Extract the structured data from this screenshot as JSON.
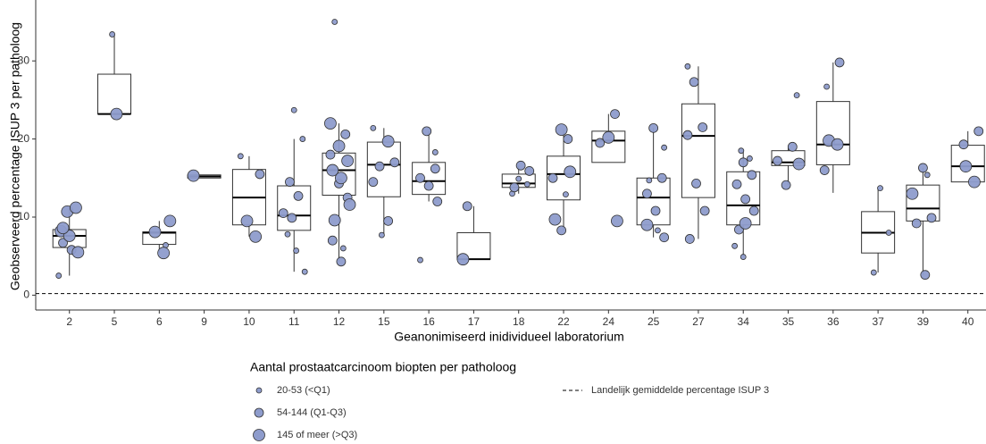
{
  "chart_data": {
    "type": "box",
    "y_label": "Geobserveerd percentage ISUP 3 per patholoog",
    "x_label": "Geanonimiseerd inidividueel laboratorium",
    "categories": [
      "2",
      "5",
      "6",
      "9",
      "10",
      "11",
      "12",
      "15",
      "16",
      "17",
      "18",
      "22",
      "24",
      "25",
      "27",
      "34",
      "35",
      "36",
      "37",
      "39",
      "40"
    ],
    "boxes": {
      "whisker_low": [
        2.5,
        23.2,
        5.4,
        15.0,
        7.5,
        3.0,
        4.3,
        7.7,
        12.0,
        4.6,
        13.0,
        8.3,
        17.0,
        7.4,
        7.2,
        4.9,
        14.1,
        13.1,
        2.9,
        2.6,
        14.5
      ],
      "q1": [
        6.1,
        23.2,
        6.5,
        15.0,
        9.0,
        8.3,
        12.8,
        12.6,
        12.9,
        4.6,
        13.8,
        12.2,
        17.0,
        9.0,
        12.5,
        9.0,
        16.6,
        16.7,
        5.4,
        9.5,
        14.5
      ],
      "median": [
        7.6,
        23.2,
        8.0,
        15.2,
        12.5,
        10.2,
        16.0,
        16.7,
        14.6,
        4.6,
        14.3,
        15.5,
        19.8,
        12.5,
        20.4,
        11.5,
        17.0,
        19.3,
        8.0,
        11.1,
        16.5
      ],
      "q3": [
        8.4,
        28.3,
        8.1,
        15.4,
        16.1,
        14.0,
        18.2,
        19.6,
        17.0,
        8.0,
        15.5,
        17.8,
        21.0,
        15.0,
        24.5,
        15.8,
        18.5,
        24.8,
        10.7,
        14.1,
        19.2
      ],
      "whisker_high": [
        11.2,
        33.4,
        9.5,
        15.4,
        17.8,
        20.0,
        22.0,
        21.4,
        21.0,
        11.4,
        16.6,
        21.2,
        23.2,
        21.4,
        29.3,
        18.5,
        19.0,
        29.8,
        13.7,
        16.3,
        21.0
      ]
    },
    "legend_title": "Aantal prostaatcarcinoom biopten per patholoog",
    "series": [
      {
        "name": "20-53 (<Q1)",
        "color": "#8e9ccc",
        "x": [
          "2",
          "5",
          "6",
          "10",
          "11",
          "11",
          "11",
          "11",
          "11",
          "12",
          "12",
          "15",
          "15",
          "16",
          "16",
          "18",
          "18",
          "18",
          "22",
          "25",
          "25",
          "25",
          "27",
          "34",
          "34",
          "34",
          "34",
          "35",
          "36",
          "37",
          "37",
          "37",
          "39"
        ],
        "values": [
          2.5,
          33.4,
          6.4,
          17.8,
          23.7,
          20.0,
          7.8,
          5.7,
          3.0,
          35.0,
          6.0,
          21.4,
          7.7,
          18.3,
          4.5,
          14.9,
          14.2,
          13.0,
          12.9,
          18.9,
          14.7,
          8.3,
          29.3,
          18.5,
          17.5,
          6.3,
          4.9,
          25.6,
          26.7,
          13.7,
          8.0,
          2.9,
          15.4
        ]
      },
      {
        "name": "54-144 (Q1-Q3)",
        "color": "#8e9ccc",
        "x": [
          "2",
          "2",
          "10",
          "11",
          "11",
          "11",
          "11",
          "12",
          "12",
          "12",
          "12",
          "12",
          "12",
          "15",
          "15",
          "15",
          "15",
          "16",
          "16",
          "16",
          "16",
          "16",
          "17",
          "18",
          "18",
          "18",
          "22",
          "22",
          "22",
          "24",
          "24",
          "25",
          "25",
          "25",
          "25",
          "25",
          "27",
          "27",
          "27",
          "27",
          "27",
          "27",
          "34",
          "34",
          "34",
          "34",
          "34",
          "34",
          "35",
          "35",
          "35",
          "36",
          "36",
          "39",
          "39",
          "39",
          "39",
          "40",
          "40"
        ],
        "values": [
          6.7,
          5.8,
          15.5,
          14.5,
          12.7,
          10.5,
          9.9,
          20.6,
          18.0,
          14.3,
          12.5,
          7.0,
          4.3,
          17.0,
          16.5,
          9.5,
          14.5,
          21.0,
          16.2,
          15.0,
          14.0,
          12.0,
          11.4,
          16.6,
          15.9,
          13.8,
          20.0,
          15.0,
          8.3,
          23.2,
          19.5,
          21.4,
          15.0,
          13.0,
          10.8,
          7.4,
          27.3,
          21.5,
          20.5,
          14.3,
          10.8,
          7.2,
          17.0,
          15.4,
          14.2,
          12.3,
          10.8,
          8.4,
          19.0,
          17.2,
          14.1,
          29.8,
          16.0,
          16.3,
          9.9,
          9.2,
          2.6,
          21.0,
          19.3
        ]
      },
      {
        "name": "145 of meer (>Q3)",
        "color": "#8e9ccc",
        "x": [
          "2",
          "2",
          "2",
          "2",
          "2",
          "2",
          "5",
          "6",
          "6",
          "6",
          "9",
          "10",
          "10",
          "12",
          "12",
          "12",
          "12",
          "12",
          "12",
          "12",
          "15",
          "17",
          "22",
          "22",
          "22",
          "24",
          "24",
          "25",
          "34",
          "35",
          "36",
          "36",
          "39",
          "40",
          "40"
        ],
        "values": [
          10.7,
          11.2,
          8.2,
          7.6,
          5.5,
          8.6,
          23.2,
          9.5,
          8.1,
          5.4,
          15.3,
          9.5,
          7.5,
          22.0,
          19.1,
          17.2,
          16.0,
          15.0,
          11.6,
          9.6,
          19.7,
          4.6,
          21.2,
          15.8,
          9.7,
          20.2,
          9.5,
          9.0,
          9.2,
          16.8,
          19.8,
          19.3,
          13.0,
          16.5,
          14.5
        ]
      }
    ],
    "reference_line": {
      "value": 0.2,
      "name": "Landelijk gemiddelde percentage ISUP 3"
    },
    "ylim": [
      -1.9,
      37.8
    ],
    "yticks": [
      0,
      10,
      20,
      30
    ]
  }
}
